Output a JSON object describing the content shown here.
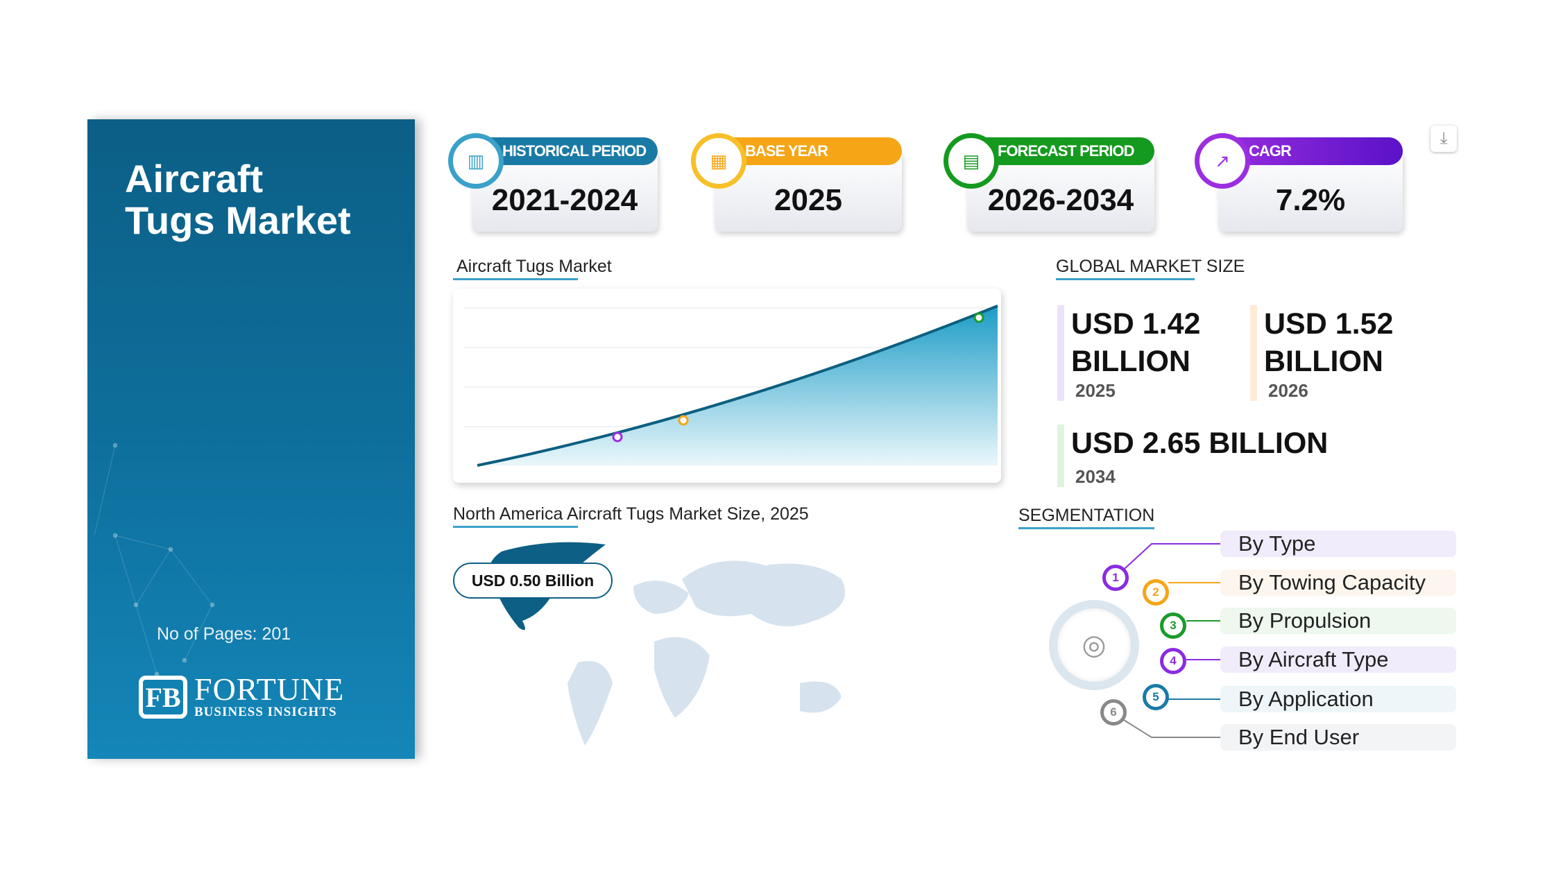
{
  "sidebar": {
    "title_line1": "Aircraft",
    "title_line2": "Tugs Market",
    "pages": "No of Pages: 201",
    "logo_main": "FORTUNE",
    "logo_sub": "BUSINESS INSIGHTS"
  },
  "cards": [
    {
      "label": "HISTORICAL PERIOD",
      "value": "2021-2024",
      "color": "#1a7aa6",
      "icon": "bar-chart-icon"
    },
    {
      "label": "BASE YEAR",
      "value": "2025",
      "color": "#f5a516",
      "icon": "calendar-icon"
    },
    {
      "label": "FORECAST PERIOD",
      "value": "2026-2034",
      "color": "#149a1e",
      "icon": "forecast-chart-icon"
    },
    {
      "label": "CAGR",
      "value": "7.2%",
      "color": "#7a18d6",
      "icon": "growth-chart-icon"
    }
  ],
  "chart": {
    "title": "Aircraft Tugs Market"
  },
  "market": {
    "title": "GLOBAL MARKET SIZE",
    "v2025": "USD 1.42 BILLION",
    "y2025": "2025",
    "v2026": "USD 1.52 BILLION",
    "y2026": "2026",
    "v2034": "USD 2.65 BILLION",
    "y2034": "2034"
  },
  "map": {
    "title": "North America Aircraft Tugs Market Size, 2025",
    "badge": "USD 0.50 Billion"
  },
  "segmentation": {
    "title": "SEGMENTATION",
    "items": [
      {
        "n": "1",
        "label": "By Type",
        "color": "#8a2be2"
      },
      {
        "n": "2",
        "label": "By Towing Capacity",
        "color": "#f5a516"
      },
      {
        "n": "3",
        "label": "By Propulsion",
        "color": "#1a9a2a"
      },
      {
        "n": "4",
        "label": "By Aircraft Type",
        "color": "#8a2be2"
      },
      {
        "n": "5",
        "label": "By Application",
        "color": "#1a7aa6"
      },
      {
        "n": "6",
        "label": "By End User",
        "color": "#888888"
      }
    ]
  }
}
